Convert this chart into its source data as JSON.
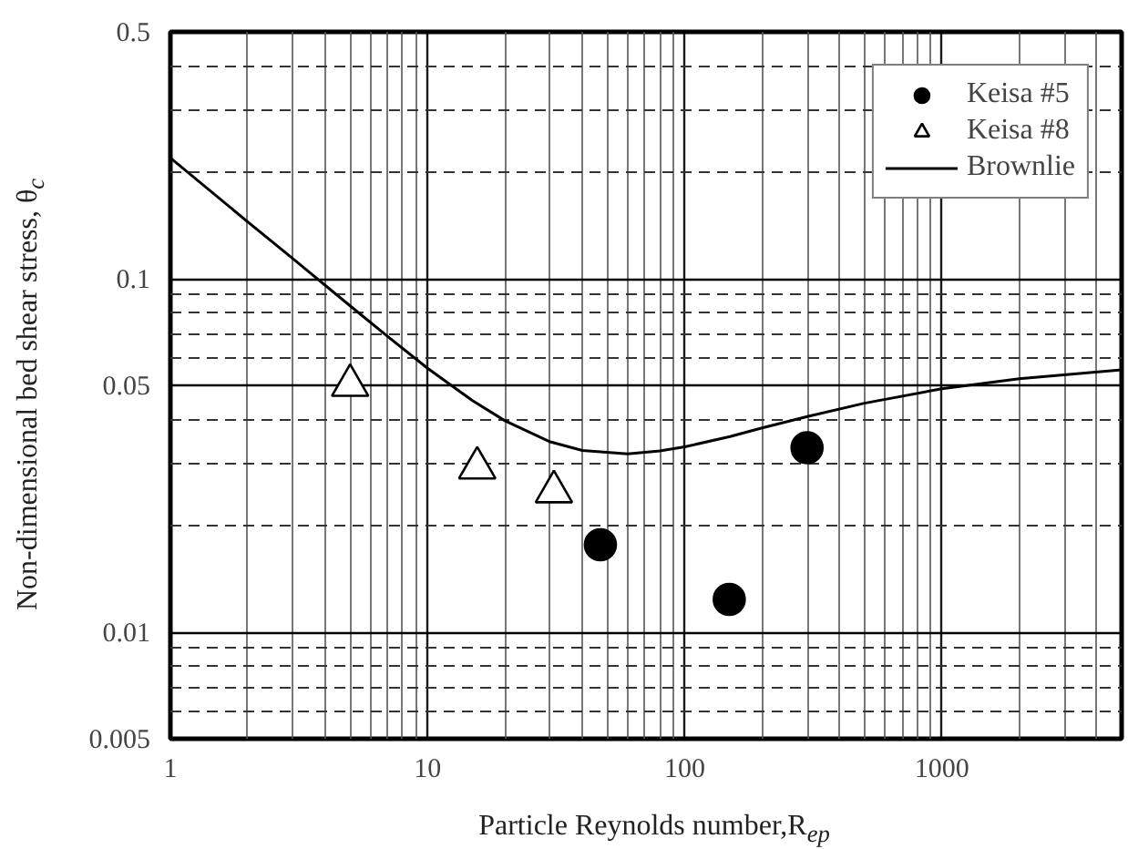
{
  "chart_data": {
    "type": "scatter",
    "xlabel": "Particle Reynolds number,R$_{ep}$",
    "ylabel": "Non-dimensional bed shear stress, θ$_{c}$",
    "log": "xy",
    "xlim": [
      1,
      5000
    ],
    "ylim": [
      0.005,
      0.5
    ],
    "xticks": [
      1,
      10,
      100,
      1000
    ],
    "yticks": [
      0.005,
      0.01,
      0.05,
      0.1,
      0.5
    ],
    "grid": true,
    "legend": "top right",
    "series": [
      {
        "name": "Keisa #5",
        "marker": "circle",
        "color": "#000000",
        "x": [
          47,
          149,
          299
        ],
        "values": [
          0.0177,
          0.0124,
          0.0333
        ]
      },
      {
        "name": "Keisa #8",
        "marker": "triangle",
        "color": "#000000",
        "x": [
          5,
          15.6,
          31
        ],
        "values": [
          0.05,
          0.0292,
          0.025
        ]
      },
      {
        "name": "Brownlie",
        "type": "line",
        "marker": "none",
        "line_style": "solid",
        "color": "#000000",
        "x": [
          1,
          2,
          3,
          5,
          7,
          10,
          15,
          20,
          30,
          40,
          60,
          80,
          100,
          150,
          200,
          300,
          500,
          1000,
          2000,
          5000
        ],
        "values": [
          0.22,
          0.145,
          0.114,
          0.0839,
          0.0687,
          0.0559,
          0.0452,
          0.0397,
          0.0346,
          0.0327,
          0.032,
          0.0326,
          0.0335,
          0.0358,
          0.0379,
          0.0408,
          0.0445,
          0.0489,
          0.0522,
          0.0553
        ]
      }
    ]
  }
}
